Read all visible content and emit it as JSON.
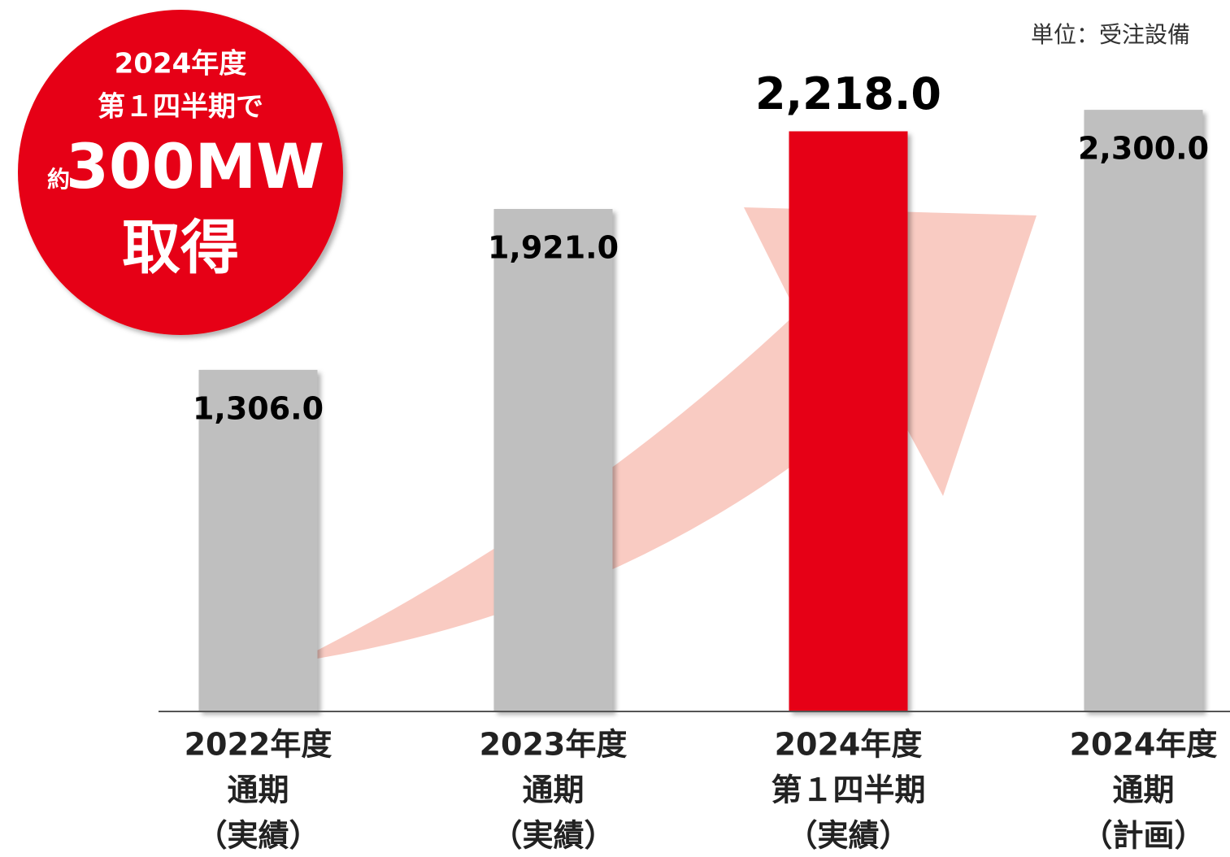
{
  "chart_data": {
    "type": "bar",
    "unit_note": "単位：受注設備",
    "categories": [
      [
        "2022年度",
        "通期",
        "（実績）"
      ],
      [
        "2023年度",
        "通期",
        "（実績）"
      ],
      [
        "2024年度",
        "第１四半期",
        "（実績）"
      ],
      [
        "2024年度",
        "通期",
        "（計画）"
      ]
    ],
    "values": [
      1306,
      1921,
      2218,
      2300
    ],
    "value_labels": [
      "1,306.0",
      "1,921.0",
      "2,218.0",
      "2,300.0"
    ],
    "colors": [
      "#bfbfbf",
      "#bfbfbf",
      "#e60012",
      "#bfbfbf"
    ],
    "ylim": [
      0,
      2720
    ],
    "badge": [
      "2024年度",
      "第１四半期で",
      "約",
      "300MW",
      "取得"
    ]
  }
}
